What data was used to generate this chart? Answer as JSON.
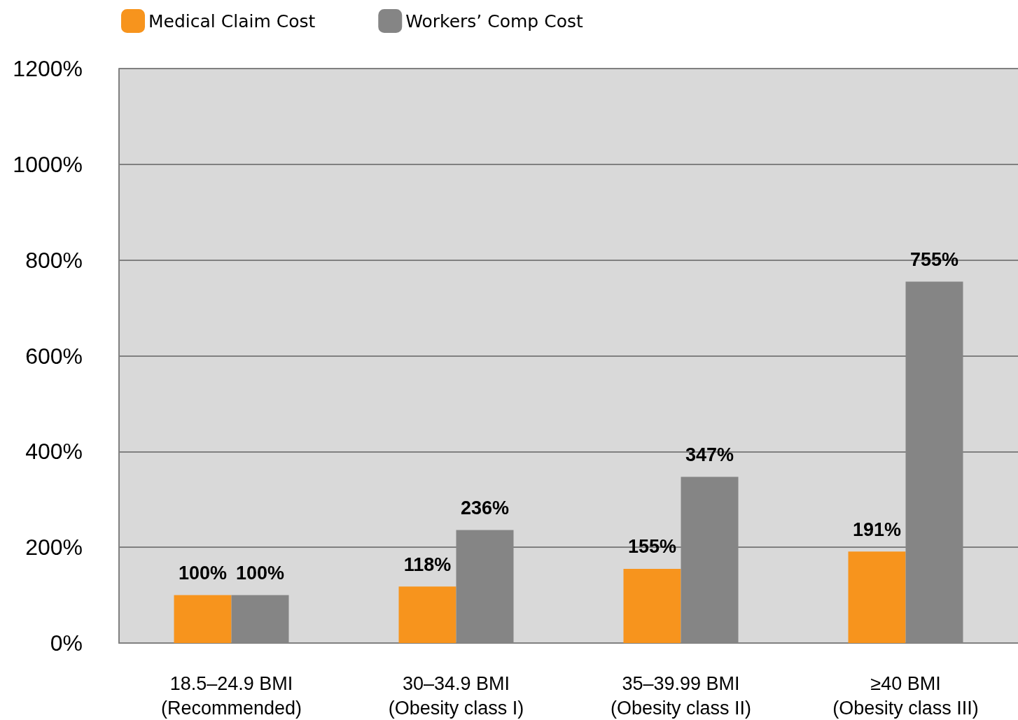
{
  "chart_data": {
    "type": "bar",
    "categories": [
      "18.5–24.9 BMI\n(Recommended)",
      "30–34.9 BMI\n(Obesity class I)",
      "35–39.99 BMI\n(Obesity class II)",
      "≥40 BMI\n(Obesity class III)"
    ],
    "series": [
      {
        "name": "Medical Claim Cost",
        "color": "#f7941d",
        "values": [
          100,
          118,
          155,
          191
        ],
        "value_labels": [
          "100%",
          "118%",
          "155%",
          "191%"
        ]
      },
      {
        "name": "Workers’ Comp Cost",
        "color": "#858585",
        "values": [
          100,
          236,
          347,
          755
        ],
        "value_labels": [
          "100%",
          "236%",
          "347%",
          "755%"
        ]
      }
    ],
    "ylim": [
      0,
      1200
    ],
    "yticks": [
      {
        "value": 0,
        "label": "0%"
      },
      {
        "value": 200,
        "label": "200%"
      },
      {
        "value": 400,
        "label": "400%"
      },
      {
        "value": 600,
        "label": "600%"
      },
      {
        "value": 800,
        "label": "800%"
      },
      {
        "value": 1000,
        "label": "1000%"
      },
      {
        "value": 1200,
        "label": "1200%"
      }
    ],
    "grid": "y",
    "legend": "top left"
  }
}
